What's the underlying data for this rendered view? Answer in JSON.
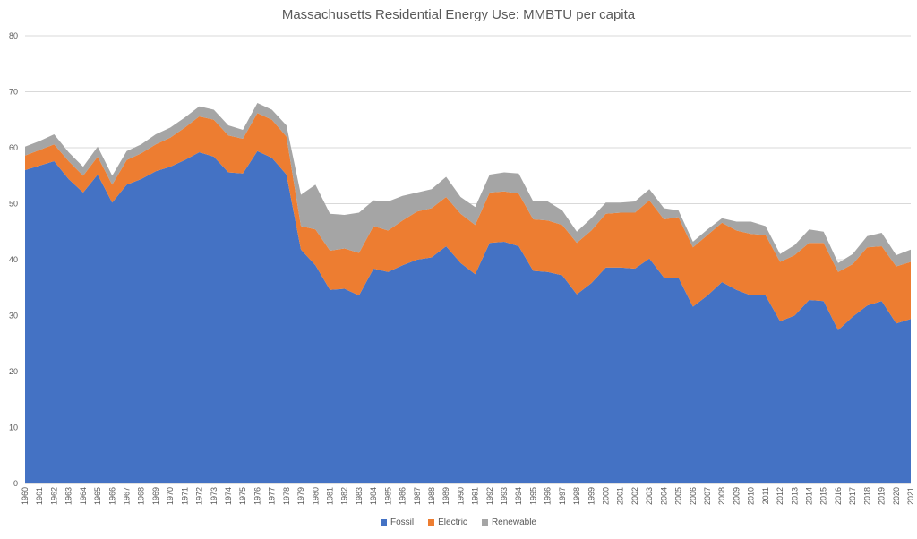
{
  "chart_data": {
    "type": "area",
    "stacked": true,
    "title": "Massachusetts Residential Energy Use: MMBTU per capita",
    "xlabel": "",
    "ylabel": "",
    "ylim": [
      0,
      80
    ],
    "yticks": [
      0,
      10,
      20,
      30,
      40,
      50,
      60,
      70,
      80
    ],
    "grid": true,
    "legend_position": "bottom",
    "categories": [
      "1960",
      "1961",
      "1962",
      "1963",
      "1964",
      "1965",
      "1966",
      "1967",
      "1968",
      "1969",
      "1970",
      "1971",
      "1972",
      "1973",
      "1974",
      "1975",
      "1976",
      "1977",
      "1978",
      "1979",
      "1980",
      "1981",
      "1982",
      "1983",
      "1984",
      "1985",
      "1986",
      "1987",
      "1988",
      "1989",
      "1990",
      "1991",
      "1992",
      "1993",
      "1994",
      "1995",
      "1996",
      "1997",
      "1998",
      "1999",
      "2000",
      "2001",
      "2002",
      "2003",
      "2004",
      "2005",
      "2006",
      "2007",
      "2008",
      "2009",
      "2010",
      "2011",
      "2012",
      "2013",
      "2014",
      "2015",
      "2016",
      "2017",
      "2018",
      "2019",
      "2020",
      "2021"
    ],
    "series": [
      {
        "name": "Fossil",
        "color": "#4472C4",
        "values": [
          56.0,
          56.8,
          57.6,
          54.4,
          52.0,
          55.2,
          50.2,
          53.4,
          54.4,
          55.8,
          56.6,
          57.8,
          59.2,
          58.4,
          55.6,
          55.4,
          59.4,
          58.2,
          55.2,
          41.8,
          39.0,
          34.6,
          34.8,
          33.6,
          38.4,
          37.8,
          39.0,
          40.0,
          40.4,
          42.4,
          39.4,
          37.4,
          43.0,
          43.2,
          42.4,
          38.0,
          37.8,
          37.2,
          33.8,
          35.8,
          38.6,
          38.6,
          38.4,
          40.2,
          36.8,
          36.8,
          31.6,
          33.6,
          36.0,
          34.6,
          33.6,
          33.6,
          29.0,
          30.0,
          32.8,
          32.6,
          27.4,
          29.8,
          31.8,
          32.6,
          28.6,
          29.4
        ]
      },
      {
        "name": "Electric",
        "color": "#ED7D31",
        "values": [
          2.6,
          2.8,
          3.0,
          3.2,
          3.0,
          3.2,
          3.2,
          4.4,
          4.6,
          4.8,
          5.2,
          5.8,
          6.4,
          6.6,
          6.6,
          6.2,
          6.8,
          6.8,
          6.8,
          4.2,
          6.4,
          7.0,
          7.2,
          7.6,
          7.6,
          7.4,
          8.0,
          8.6,
          8.8,
          8.8,
          8.8,
          8.8,
          9.0,
          9.0,
          9.4,
          9.2,
          9.2,
          9.0,
          9.2,
          9.4,
          9.6,
          9.8,
          10.0,
          10.4,
          10.4,
          10.8,
          10.6,
          10.8,
          10.6,
          10.6,
          11.0,
          10.8,
          10.6,
          10.8,
          10.2,
          10.4,
          10.4,
          9.4,
          10.4,
          9.8,
          10.2,
          10.2
        ]
      },
      {
        "name": "Renewable",
        "color": "#A5A5A5",
        "values": [
          1.6,
          1.6,
          1.8,
          1.6,
          1.6,
          1.8,
          1.6,
          1.6,
          1.6,
          1.8,
          1.8,
          1.8,
          1.8,
          1.8,
          1.8,
          1.6,
          1.8,
          1.8,
          2.0,
          5.6,
          8.0,
          6.6,
          6.0,
          7.2,
          4.6,
          5.2,
          4.4,
          3.4,
          3.4,
          3.6,
          3.0,
          3.2,
          3.2,
          3.4,
          3.6,
          3.2,
          3.4,
          2.6,
          2.0,
          2.2,
          2.0,
          1.8,
          2.0,
          2.0,
          2.0,
          1.2,
          1.0,
          1.0,
          0.8,
          1.6,
          2.2,
          1.6,
          1.4,
          1.8,
          2.4,
          2.0,
          1.6,
          1.8,
          2.0,
          2.4,
          2.0,
          2.2
        ]
      }
    ]
  }
}
